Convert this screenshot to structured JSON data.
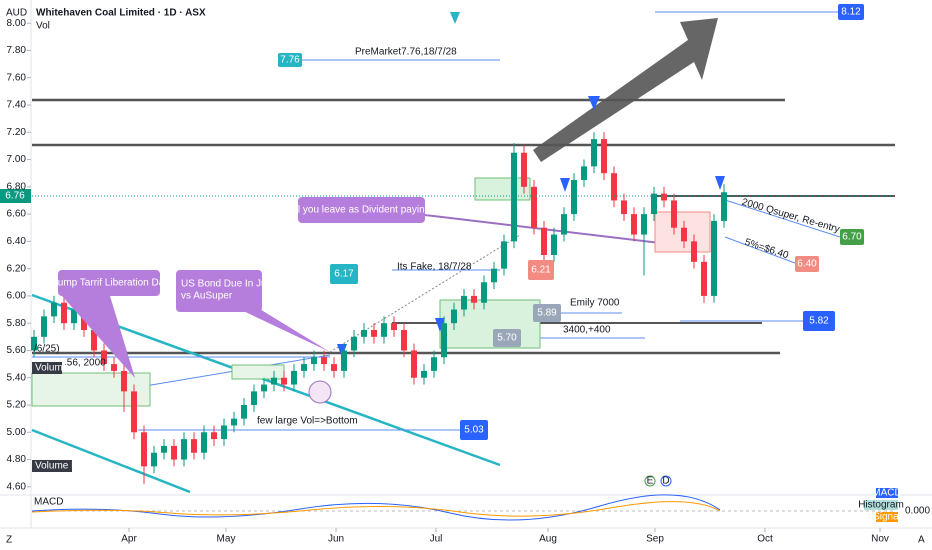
{
  "header": {
    "currency": "AUD",
    "title": "Whitehaven Coal Limited · 1D · ASX",
    "sub": "Vol"
  },
  "annotations": [
    "PreMarket7.76,18/7/28",
    "7.76",
    "8.12",
    "will you leave as Divident paying?",
    "Trump Tarrif Liberation Day",
    "US Bond Due In June",
    "vs AuSuper",
    "6.17",
    "Its Fake, 18/7/28",
    "6.21",
    "5.89",
    "Emily 7000",
    "5.70",
    "3400,+400",
    "5.82",
    "5.03",
    "few large Vol=>Bottom",
    "2000 Qsuper, Re-entry",
    "5%=$6.40",
    "6.70",
    "6.40",
    "/6/25)",
    ".56, 2000",
    "Volume",
    "Volume MA",
    "6.76"
  ],
  "macd": {
    "title": "MACD",
    "labels": [
      "MACD",
      "Histogram",
      "Signal"
    ],
    "zero": "0.000"
  },
  "events": [
    "E",
    "D"
  ],
  "corners": [
    "Z",
    "A"
  ],
  "chart_data": {
    "type": "candlestick",
    "x": [
      0,
      1,
      2,
      3,
      4,
      5,
      6,
      7,
      8,
      9,
      10,
      11,
      12,
      13,
      14,
      15,
      16,
      17,
      18,
      19,
      20,
      21,
      22,
      23,
      24,
      25,
      26,
      27,
      28,
      29,
      30,
      31,
      32,
      33,
      34,
      35,
      36,
      37,
      38,
      39,
      40,
      41,
      42,
      43,
      44,
      45,
      46,
      47,
      48,
      49,
      50,
      51,
      52,
      53,
      54,
      55,
      56,
      57,
      58,
      59,
      60,
      61,
      62,
      63,
      64,
      65,
      66,
      67,
      68,
      69
    ],
    "open": [
      5.6,
      5.7,
      5.85,
      5.95,
      5.8,
      5.9,
      5.75,
      5.6,
      5.5,
      5.45,
      5.3,
      5.0,
      4.75,
      4.85,
      4.9,
      4.8,
      4.95,
      4.85,
      5.0,
      4.95,
      5.05,
      5.1,
      5.2,
      5.3,
      5.35,
      5.4,
      5.35,
      5.45,
      5.5,
      5.55,
      5.5,
      5.45,
      5.6,
      5.7,
      5.75,
      5.7,
      5.8,
      5.75,
      5.6,
      5.4,
      5.45,
      5.55,
      5.8,
      5.9,
      6.0,
      5.95,
      6.1,
      6.2,
      6.4,
      7.05,
      6.8,
      6.5,
      6.3,
      6.45,
      6.6,
      6.85,
      6.95,
      7.15,
      6.9,
      6.7,
      6.6,
      6.45,
      6.6,
      6.75,
      6.7,
      6.5,
      6.4,
      6.25,
      6.0,
      6.55
    ],
    "high": [
      5.75,
      5.9,
      6.0,
      6.0,
      5.95,
      5.95,
      5.8,
      5.65,
      5.55,
      5.5,
      5.35,
      5.05,
      4.9,
      4.95,
      4.95,
      5.0,
      5.0,
      5.05,
      5.05,
      5.1,
      5.15,
      5.25,
      5.35,
      5.4,
      5.45,
      5.45,
      5.5,
      5.55,
      5.6,
      5.6,
      5.55,
      5.65,
      5.75,
      5.8,
      5.8,
      5.85,
      5.85,
      5.8,
      5.65,
      5.5,
      5.6,
      5.85,
      5.95,
      6.05,
      6.05,
      6.15,
      6.25,
      6.45,
      7.12,
      7.1,
      6.85,
      6.55,
      6.5,
      6.65,
      6.9,
      7.0,
      7.2,
      7.2,
      6.95,
      6.75,
      6.65,
      6.65,
      6.8,
      6.8,
      6.75,
      6.55,
      6.45,
      6.3,
      6.6,
      6.82
    ],
    "low": [
      5.55,
      5.65,
      5.8,
      5.75,
      5.75,
      5.7,
      5.55,
      5.45,
      5.4,
      5.15,
      4.95,
      4.62,
      4.7,
      4.8,
      4.75,
      4.75,
      4.8,
      4.8,
      4.9,
      4.9,
      5.0,
      5.05,
      5.15,
      5.25,
      5.3,
      5.3,
      5.3,
      5.4,
      5.45,
      5.45,
      5.4,
      5.4,
      5.55,
      5.65,
      5.65,
      5.65,
      5.7,
      5.55,
      5.35,
      5.35,
      5.4,
      5.5,
      5.75,
      5.85,
      5.9,
      5.9,
      6.05,
      6.15,
      6.35,
      6.75,
      6.45,
      6.2,
      6.25,
      6.4,
      6.55,
      6.8,
      6.9,
      6.85,
      6.65,
      6.55,
      6.4,
      6.15,
      6.55,
      6.65,
      6.45,
      6.35,
      6.2,
      5.95,
      5.95,
      6.5
    ],
    "close": [
      5.7,
      5.85,
      5.95,
      5.8,
      5.9,
      5.75,
      5.6,
      5.5,
      5.45,
      5.3,
      5.0,
      4.75,
      4.85,
      4.9,
      4.8,
      4.95,
      4.85,
      5.0,
      4.95,
      5.05,
      5.1,
      5.2,
      5.3,
      5.35,
      5.4,
      5.35,
      5.45,
      5.5,
      5.55,
      5.5,
      5.45,
      5.6,
      5.7,
      5.75,
      5.7,
      5.8,
      5.75,
      5.6,
      5.4,
      5.45,
      5.55,
      5.8,
      5.9,
      6.0,
      5.95,
      6.1,
      6.2,
      6.4,
      7.05,
      6.8,
      6.5,
      6.3,
      6.45,
      6.6,
      6.85,
      6.95,
      7.15,
      6.9,
      6.7,
      6.6,
      6.45,
      6.6,
      6.75,
      6.7,
      6.5,
      6.4,
      6.25,
      6.0,
      6.55,
      6.76
    ],
    "xlim": [
      -0.2,
      86.1
    ],
    "xticks": [
      {
        "value": 9.5,
        "label": "Apr"
      },
      {
        "value": 19.2,
        "label": "May"
      },
      {
        "value": 30.2,
        "label": "Jun"
      },
      {
        "value": 40.2,
        "label": "Jul"
      },
      {
        "value": 51.4,
        "label": "Aug"
      },
      {
        "value": 62.1,
        "label": "Sep"
      },
      {
        "value": 73.1,
        "label": "Oct"
      },
      {
        "value": 84.6,
        "label": "Nov"
      }
    ],
    "ylim": [
      4.54,
      8.17
    ],
    "yticks": [
      {
        "value": 8,
        "label": "8.00"
      },
      {
        "value": 7.8,
        "label": "7.80"
      },
      {
        "value": 7.6,
        "label": "7.60"
      },
      {
        "value": 7.4,
        "label": "7.40"
      },
      {
        "value": 7.2,
        "label": "7.20"
      },
      {
        "value": 7,
        "label": "7.00"
      },
      {
        "value": 6.8,
        "label": "6.80"
      },
      {
        "value": 6.6,
        "label": "6.60"
      },
      {
        "value": 6.4,
        "label": "6.40"
      },
      {
        "value": 6.2,
        "label": "6.20"
      },
      {
        "value": 6,
        "label": "6.00"
      },
      {
        "value": 5.8,
        "label": "5.80"
      },
      {
        "value": 5.6,
        "label": "5.60"
      },
      {
        "value": 5.4,
        "label": "5.40"
      },
      {
        "value": 5.2,
        "label": "5.20"
      },
      {
        "value": 5,
        "label": "5.00"
      },
      {
        "value": 4.8,
        "label": "4.80"
      },
      {
        "value": 4.6,
        "label": "4.60"
      }
    ],
    "up_color": "#089981",
    "down_color": "#f23645"
  }
}
